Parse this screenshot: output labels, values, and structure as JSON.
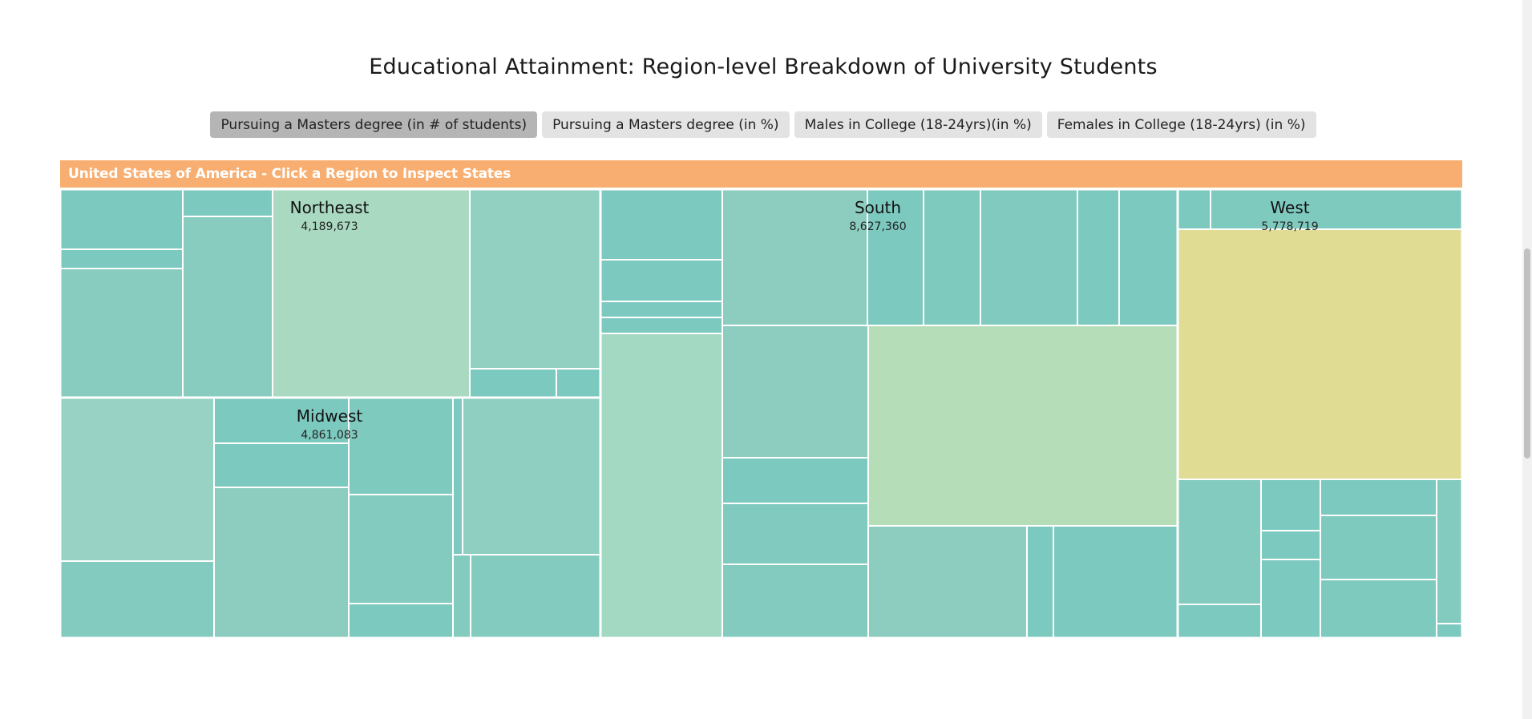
{
  "title": "Educational Attainment: Region-level Breakdown of University Students",
  "buttons": [
    {
      "label": "Pursuing a Masters degree (in # of students)",
      "active": true
    },
    {
      "label": "Pursuing a Masters degree (in %)",
      "active": false
    },
    {
      "label": "Males in College (18-24yrs)(in %)",
      "active": false
    },
    {
      "label": "Females in College (18-24yrs) (in %)",
      "active": false
    }
  ],
  "breadcrumb": "United States of America - Click a Region to Inspect States",
  "chart_data": {
    "type": "treemap",
    "metric": "Pursuing a Masters degree (in # of students)",
    "regions": [
      {
        "name": "Northeast",
        "total": 4189673,
        "total_label": "4,189,673"
      },
      {
        "name": "Midwest",
        "total": 4861083,
        "total_label": "4,861,083"
      },
      {
        "name": "South",
        "total": 8627360,
        "total_label": "8,627,360"
      },
      {
        "name": "West",
        "total": 5778719,
        "total_label": "5,778,719"
      }
    ]
  }
}
